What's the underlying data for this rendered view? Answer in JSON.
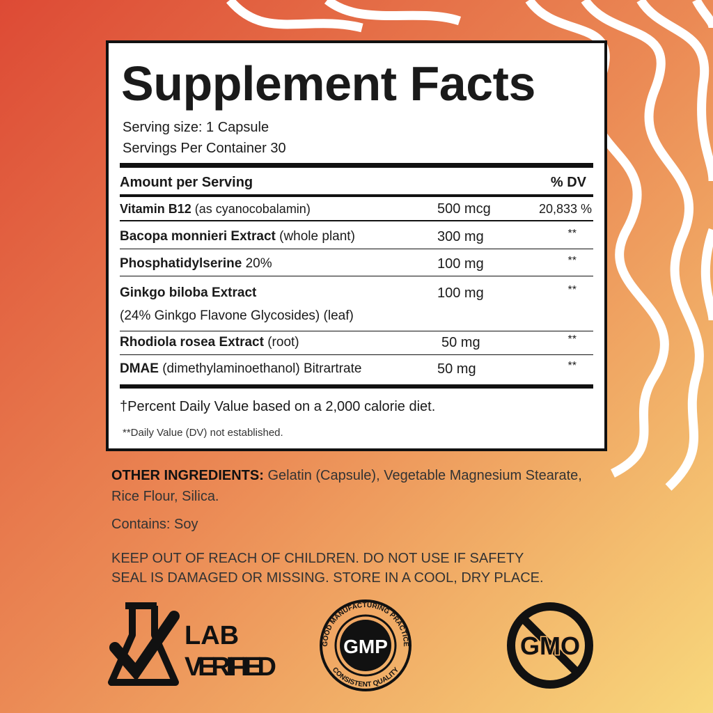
{
  "panel": {
    "title": "Supplement Facts",
    "serving_size": "Serving size: 1 Capsule",
    "servings_per_container": "Servings Per Container 30",
    "header": {
      "amount": "Amount per Serving",
      "dv": "% DV"
    },
    "rows": [
      {
        "name": "Vitamin B12",
        "detail": "(as cyanocobalamin)",
        "amount": "500 mcg",
        "dv": "20,833 %"
      },
      {
        "name": "Bacopa monnieri Extract",
        "detail": "(whole plant)",
        "amount": "300 mg",
        "dv": "**"
      },
      {
        "name": "Phosphatidylserine",
        "detail": "20%",
        "amount": "100 mg",
        "dv": "**"
      },
      {
        "name": "Ginkgo biloba Extract",
        "detail": "(24% Ginkgo Flavone Glycosides) (leaf)",
        "amount": "100 mg",
        "dv": "**"
      },
      {
        "name": "Rhodiola rosea Extract",
        "detail": "(root)",
        "amount": "50 mg",
        "dv": "**"
      },
      {
        "name": "DMAE",
        "detail": "(dimethylaminoethanol) Bitrartrate",
        "amount": "50 mg",
        "dv": "**"
      }
    ],
    "footnotes": [
      "†Percent Daily Value based on a 2,000 calorie diet.",
      "**Daily Value (DV) not established."
    ]
  },
  "other_ingredients": {
    "label": "OTHER INGREDIENTS:",
    "text": "Gelatin (Capsule), Vegetable Magnesium Stearate, Rice Flour, Silica."
  },
  "contains": "Contains: Soy",
  "warning": [
    "KEEP OUT OF REACH OF CHILDREN. DO NOT USE IF SAFETY",
    "SEAL IS DAMAGED OR MISSING. STORE IN A COOL, DRY PLACE."
  ],
  "badges": {
    "lab": [
      "LAB",
      "VERIFIED"
    ],
    "gmp": {
      "top": "GOOD MANUFACTURING PRACTICE",
      "center": "GMP",
      "bottom": "CONSISTENT QUALITY"
    },
    "gmo": "GMO"
  }
}
